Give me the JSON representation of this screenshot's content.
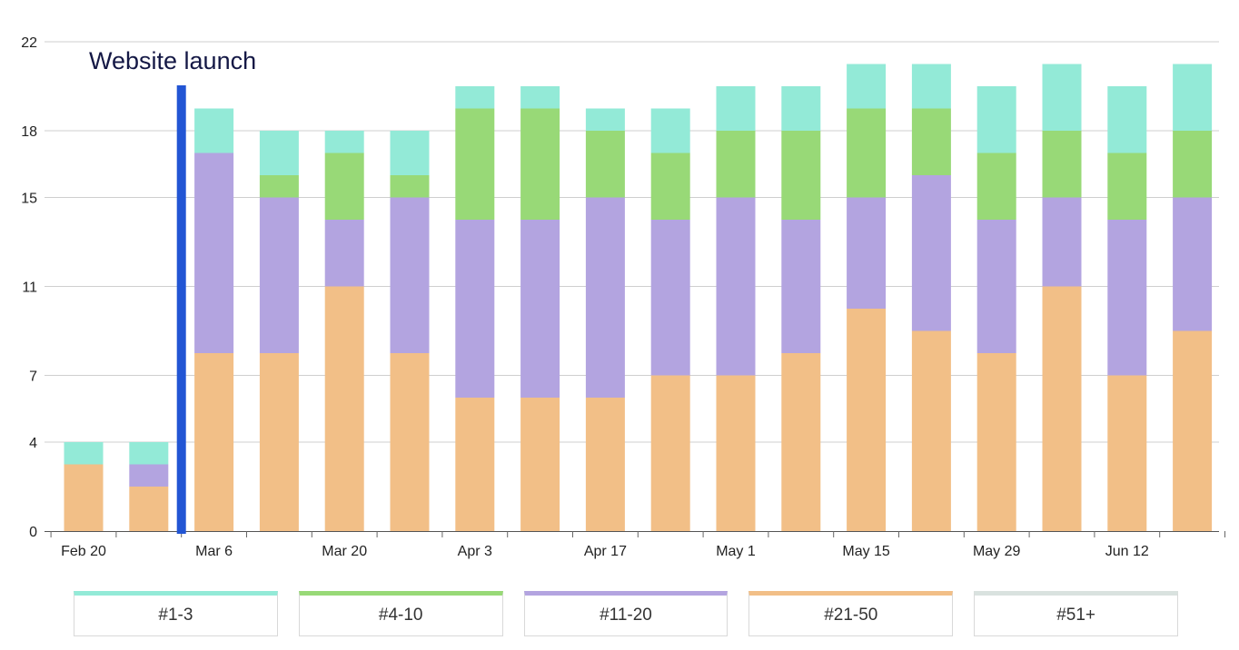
{
  "chart_data": {
    "type": "bar",
    "stacked": true,
    "categories": [
      "Feb 20",
      "Feb 27",
      "Mar 6",
      "Mar 13",
      "Mar 20",
      "Mar 27",
      "Apr 3",
      "Apr 10",
      "Apr 17",
      "Apr 24",
      "May 1",
      "May 8",
      "May 15",
      "May 22",
      "May 29",
      "Jun 5",
      "Jun 12",
      "Jun 19"
    ],
    "x_tick_labels": [
      "Feb 20",
      "Mar 6",
      "Mar 20",
      "Apr 3",
      "Apr 17",
      "May 1",
      "May 15",
      "May 29",
      "Jun 12"
    ],
    "series": [
      {
        "name": "#21-50",
        "color": "#f2bf87",
        "values": [
          3,
          2,
          8,
          8,
          11,
          8,
          6,
          6,
          6,
          7,
          7,
          8,
          10,
          9,
          8,
          11,
          7,
          9
        ]
      },
      {
        "name": "#11-20",
        "color": "#b3a4e0",
        "values": [
          0,
          1,
          9,
          7,
          3,
          7,
          8,
          8,
          9,
          7,
          8,
          6,
          5,
          7,
          6,
          4,
          7,
          6
        ]
      },
      {
        "name": "#4-10",
        "color": "#98d977",
        "values": [
          0,
          0,
          0,
          1,
          3,
          1,
          5,
          5,
          3,
          3,
          3,
          4,
          4,
          3,
          3,
          3,
          3,
          3
        ]
      },
      {
        "name": "#1-3",
        "color": "#93ead7",
        "values": [
          1,
          1,
          2,
          2,
          1,
          2,
          1,
          1,
          1,
          2,
          2,
          2,
          2,
          2,
          3,
          3,
          3,
          3
        ]
      },
      {
        "name": "#51+",
        "color": "#d9e2df",
        "values": [
          0,
          0,
          0,
          0,
          0,
          0,
          0,
          0,
          0,
          0,
          0,
          0,
          0,
          0,
          0,
          0,
          0,
          0
        ]
      }
    ],
    "y_tick_labels": [
      "0",
      "4",
      "7",
      "11",
      "15",
      "18",
      "22"
    ],
    "ylim": [
      0,
      22
    ],
    "grid": true,
    "annotation": {
      "label": "Website launch",
      "between": [
        "Feb 27",
        "Mar 6"
      ],
      "color": "#2255d4"
    },
    "legend_position": "bottom",
    "title": "",
    "xlabel": "",
    "ylabel": ""
  }
}
